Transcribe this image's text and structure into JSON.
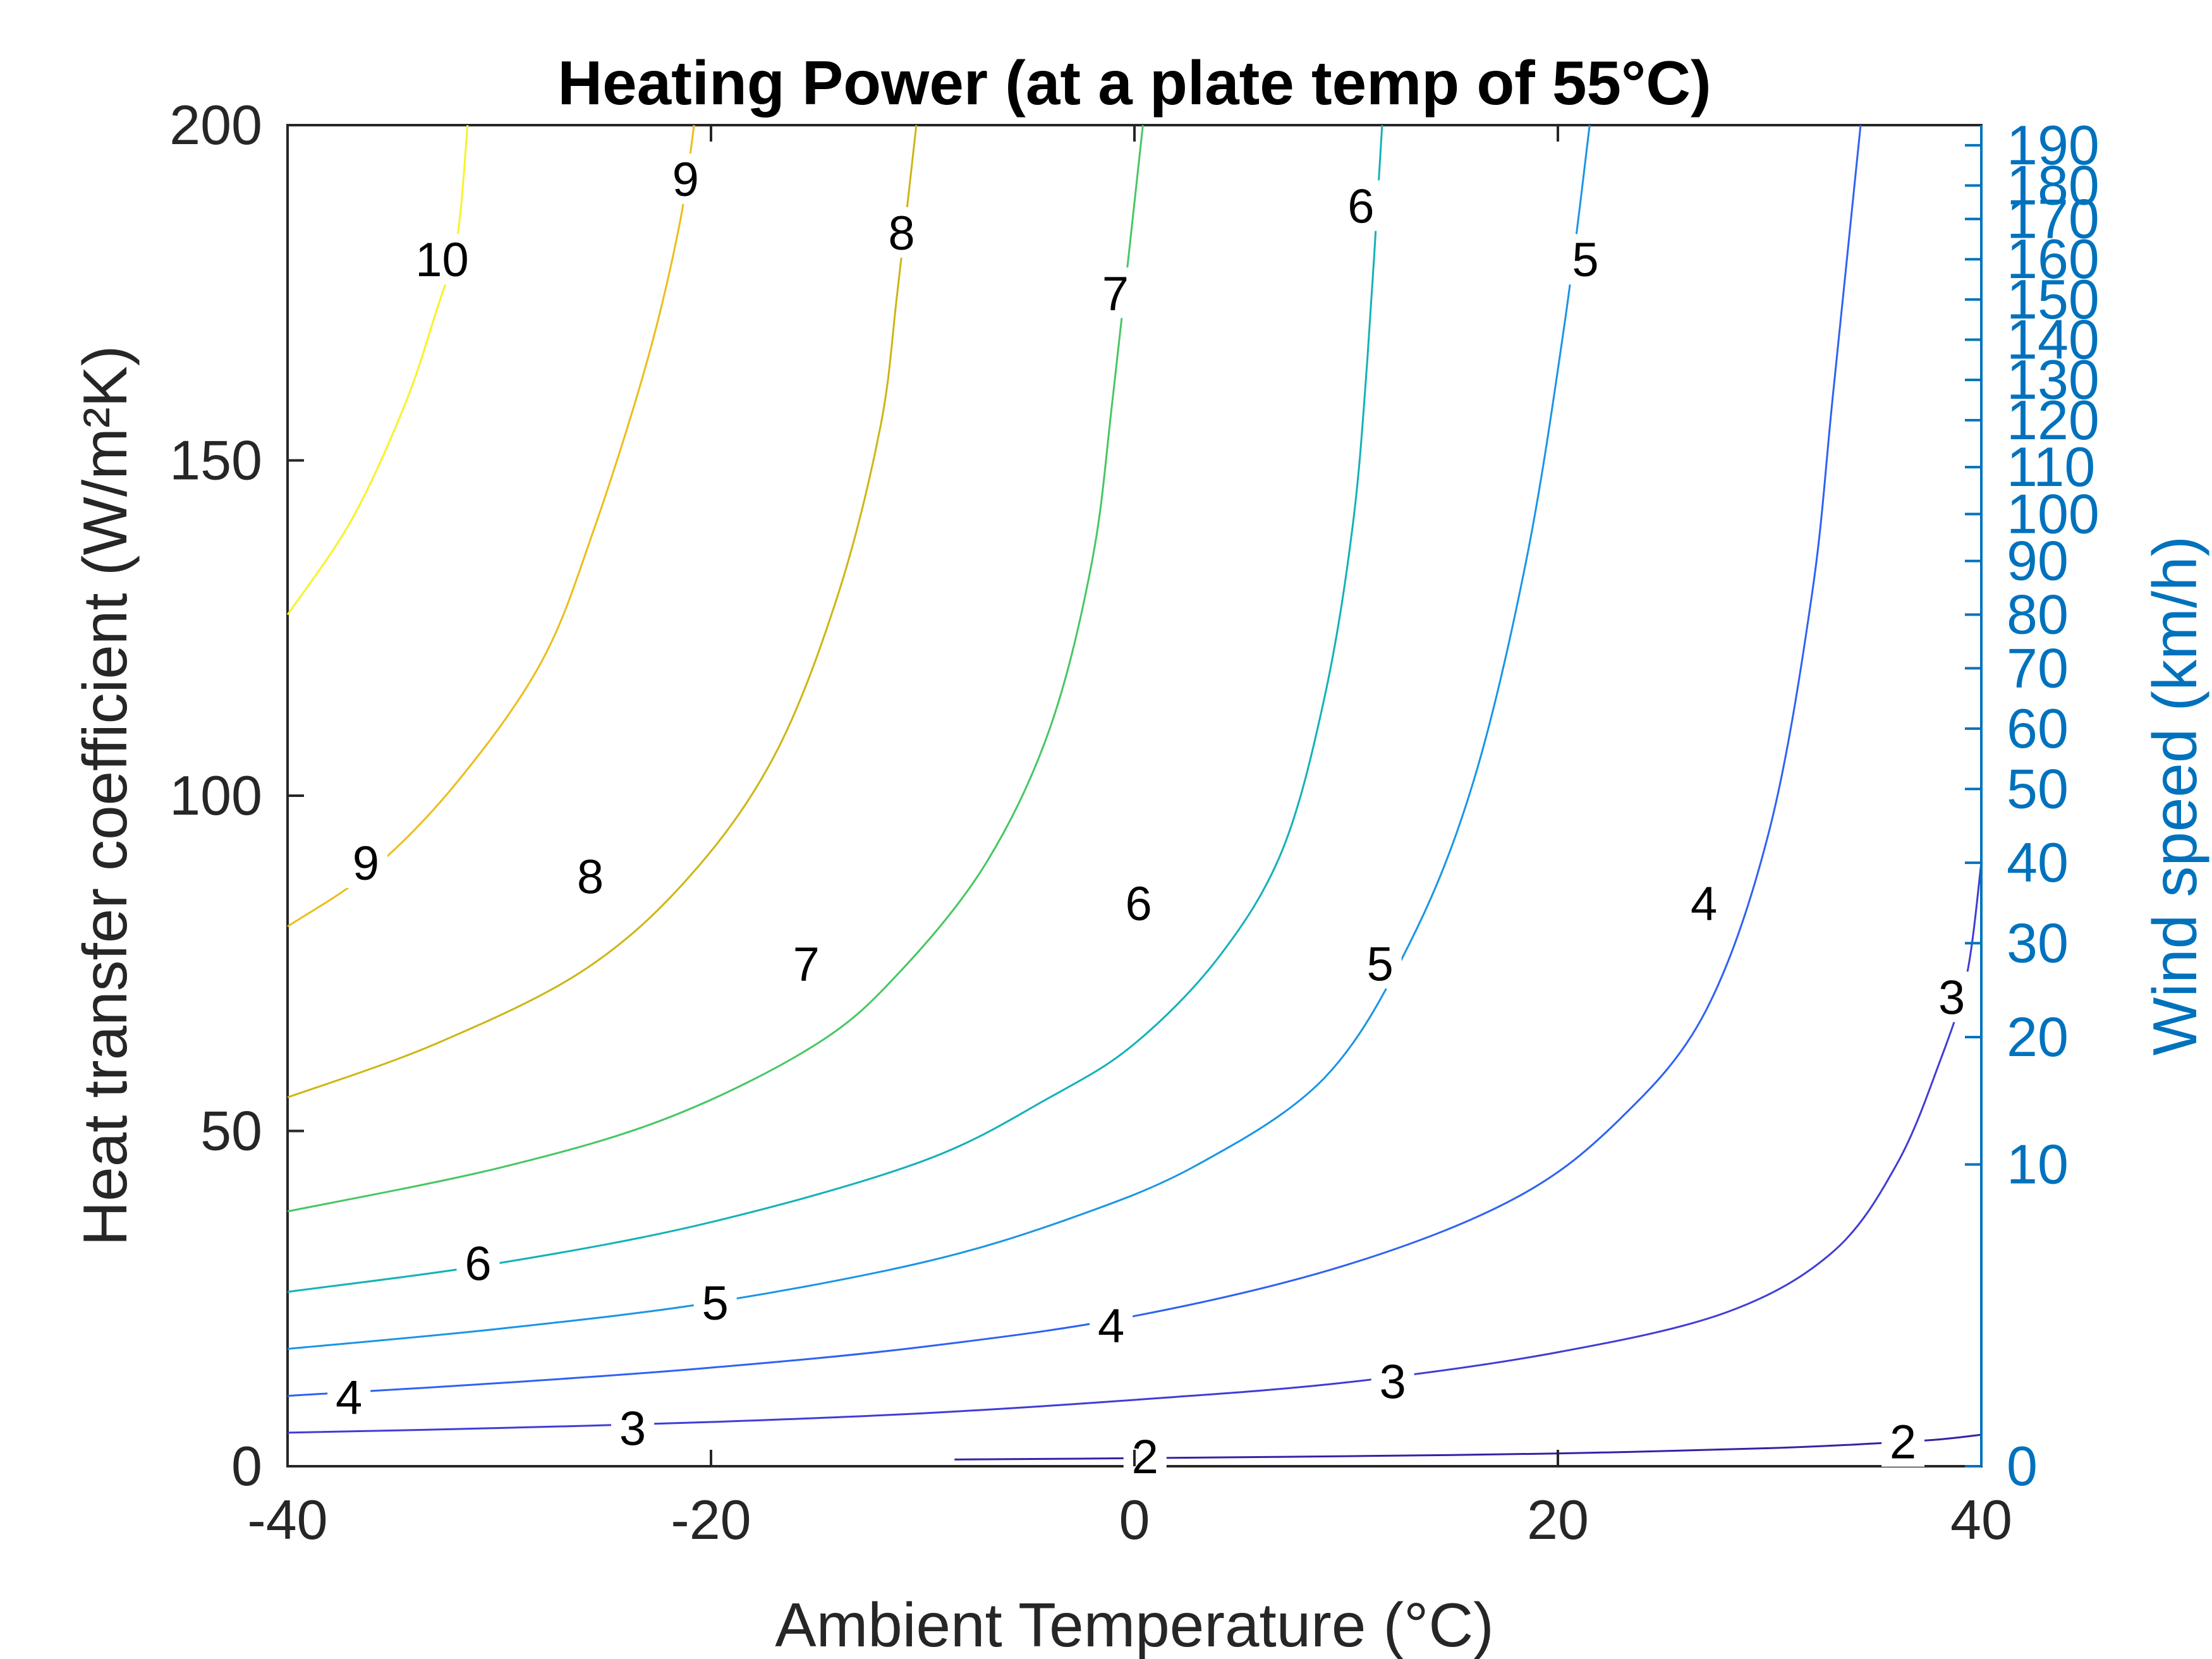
{
  "chart_data": {
    "type": "contour",
    "title": "Heating Power (at a plate temp of 55°C)",
    "xlabel": "Ambient Temperature (°C)",
    "ylabel": "Heat transfer coefficient (W/m²K)",
    "y2label": "Wind speed (km/h)",
    "xlim": [
      -40,
      40
    ],
    "ylim": [
      0,
      200
    ],
    "x_ticks": [
      -40,
      -20,
      0,
      20,
      40
    ],
    "x_tick_labels": [
      "-40",
      "-20",
      "0",
      "20",
      "40"
    ],
    "y_ticks": [
      0,
      50,
      100,
      150,
      200
    ],
    "y_tick_labels": [
      "0",
      "50",
      "100",
      "150",
      "200"
    ],
    "y2_ticks": [
      {
        "label": "0",
        "h": 0
      },
      {
        "label": "10",
        "h": 45
      },
      {
        "label": "20",
        "h": 64
      },
      {
        "label": "30",
        "h": 78
      },
      {
        "label": "40",
        "h": 90
      },
      {
        "label": "50",
        "h": 101
      },
      {
        "label": "60",
        "h": 110
      },
      {
        "label": "70",
        "h": 119
      },
      {
        "label": "80",
        "h": 127
      },
      {
        "label": "90",
        "h": 135
      },
      {
        "label": "100",
        "h": 142
      },
      {
        "label": "110",
        "h": 149
      },
      {
        "label": "120",
        "h": 156
      },
      {
        "label": "130",
        "h": 162
      },
      {
        "label": "140",
        "h": 168
      },
      {
        "label": "150",
        "h": 174
      },
      {
        "label": "160",
        "h": 180
      },
      {
        "label": "170",
        "h": 186
      },
      {
        "label": "180",
        "h": 191
      },
      {
        "label": "190",
        "h": 197
      }
    ],
    "grid": false,
    "colors": {
      "axis": "#262626",
      "right_axis": "#0072BD"
    },
    "levels": [
      {
        "level": 2,
        "label": "2",
        "color": "#3b1fa6",
        "points": [
          [
            -8.5,
            1
          ],
          [
            0,
            1.2
          ],
          [
            10,
            1.5
          ],
          [
            20,
            1.9
          ],
          [
            30,
            2.7
          ],
          [
            35,
            3.4
          ],
          [
            38,
            4.0
          ],
          [
            40,
            4.7
          ]
        ],
        "labels_at": [
          [
            0.5,
            1.5
          ],
          [
            36.3,
            3.7
          ]
        ]
      },
      {
        "level": 3,
        "label": "3",
        "color": "#3f3dd6",
        "points": [
          [
            -40,
            5
          ],
          [
            -30,
            5.7
          ],
          [
            -20,
            6.6
          ],
          [
            -10,
            7.9
          ],
          [
            0,
            9.9
          ],
          [
            10,
            12.5
          ],
          [
            20,
            17
          ],
          [
            28,
            23
          ],
          [
            33,
            32
          ],
          [
            36,
            45
          ],
          [
            38,
            60
          ],
          [
            39.3,
            73
          ],
          [
            40,
            90
          ]
        ],
        "labels_at": [
          [
            -23.7,
            5.7
          ],
          [
            12.2,
            12.7
          ],
          [
            38.6,
            70
          ]
        ]
      },
      {
        "level": 4,
        "label": "4",
        "color": "#2e62f2",
        "points": [
          [
            -40,
            10.5
          ],
          [
            -30,
            12.4
          ],
          [
            -20,
            14.7
          ],
          [
            -10,
            17.8
          ],
          [
            0,
            22.4
          ],
          [
            10,
            30
          ],
          [
            18,
            40
          ],
          [
            23,
            52
          ],
          [
            27,
            68
          ],
          [
            30,
            95
          ],
          [
            32,
            130
          ],
          [
            33,
            160
          ],
          [
            34.3,
            200
          ]
        ],
        "labels_at": [
          [
            -37.1,
            10.3
          ],
          [
            -1.1,
            21
          ],
          [
            26.9,
            84
          ]
        ]
      },
      {
        "level": 5,
        "label": "5",
        "color": "#1995e6",
        "points": [
          [
            -40,
            17.5
          ],
          [
            -30,
            20.5
          ],
          [
            -20,
            24.4
          ],
          [
            -10,
            30.4
          ],
          [
            -3,
            37
          ],
          [
            3,
            45
          ],
          [
            9,
            58
          ],
          [
            13,
            78
          ],
          [
            16,
            102
          ],
          [
            18.5,
            135
          ],
          [
            20.3,
            170
          ],
          [
            21.5,
            200
          ]
        ],
        "labels_at": [
          [
            -19.8,
            24.4
          ],
          [
            11.6,
            75
          ],
          [
            21.3,
            180
          ]
        ]
      },
      {
        "level": 6,
        "label": "6",
        "color": "#13b1b8",
        "points": [
          [
            -40,
            26
          ],
          [
            -30,
            30.3
          ],
          [
            -20,
            36.4
          ],
          [
            -10,
            45.5
          ],
          [
            -4,
            55
          ],
          [
            0,
            63
          ],
          [
            4,
            76
          ],
          [
            7,
            92
          ],
          [
            9,
            115
          ],
          [
            10.3,
            140
          ],
          [
            11,
            165
          ],
          [
            11.7,
            200
          ]
        ],
        "labels_at": [
          [
            -31,
            30.3
          ],
          [
            0.2,
            84
          ],
          [
            10.7,
            188
          ]
        ]
      },
      {
        "level": 7,
        "label": "7",
        "color": "#46c762",
        "points": [
          [
            -40,
            38
          ],
          [
            -30,
            44.5
          ],
          [
            -22,
            52
          ],
          [
            -15,
            63
          ],
          [
            -11,
            74
          ],
          [
            -7,
            90
          ],
          [
            -4,
            110
          ],
          [
            -2,
            135
          ],
          [
            -1,
            160
          ],
          [
            0.4,
            200
          ]
        ],
        "labels_at": [
          [
            -15.5,
            75
          ],
          [
            -0.9,
            175
          ]
        ]
      },
      {
        "level": 8,
        "label": "8",
        "color": "#cdb613",
        "points": [
          [
            -40,
            55
          ],
          [
            -33,
            63
          ],
          [
            -26,
            74
          ],
          [
            -21,
            88
          ],
          [
            -17,
            106
          ],
          [
            -14,
            130
          ],
          [
            -12,
            155
          ],
          [
            -11.2,
            175
          ],
          [
            -10.3,
            200
          ]
        ],
        "labels_at": [
          [
            -25.7,
            88
          ],
          [
            -11,
            184
          ]
        ]
      },
      {
        "level": 9,
        "label": "9",
        "color": "#ecbd1a",
        "points": [
          [
            -40,
            80.5
          ],
          [
            -36,
            89
          ],
          [
            -32,
            102
          ],
          [
            -28,
            120
          ],
          [
            -25.5,
            140
          ],
          [
            -23,
            165
          ],
          [
            -21.5,
            185
          ],
          [
            -20.8,
            200
          ]
        ],
        "labels_at": [
          [
            -36.3,
            90
          ],
          [
            -21.2,
            192
          ]
        ]
      },
      {
        "level": 10,
        "label": "10",
        "color": "#f7f32a",
        "points": [
          [
            -40,
            127
          ],
          [
            -37,
            141
          ],
          [
            -34.5,
            158
          ],
          [
            -33,
            172
          ],
          [
            -32,
            183
          ],
          [
            -31.5,
            200
          ]
        ],
        "labels_at": [
          [
            -32.7,
            180
          ]
        ]
      }
    ]
  }
}
